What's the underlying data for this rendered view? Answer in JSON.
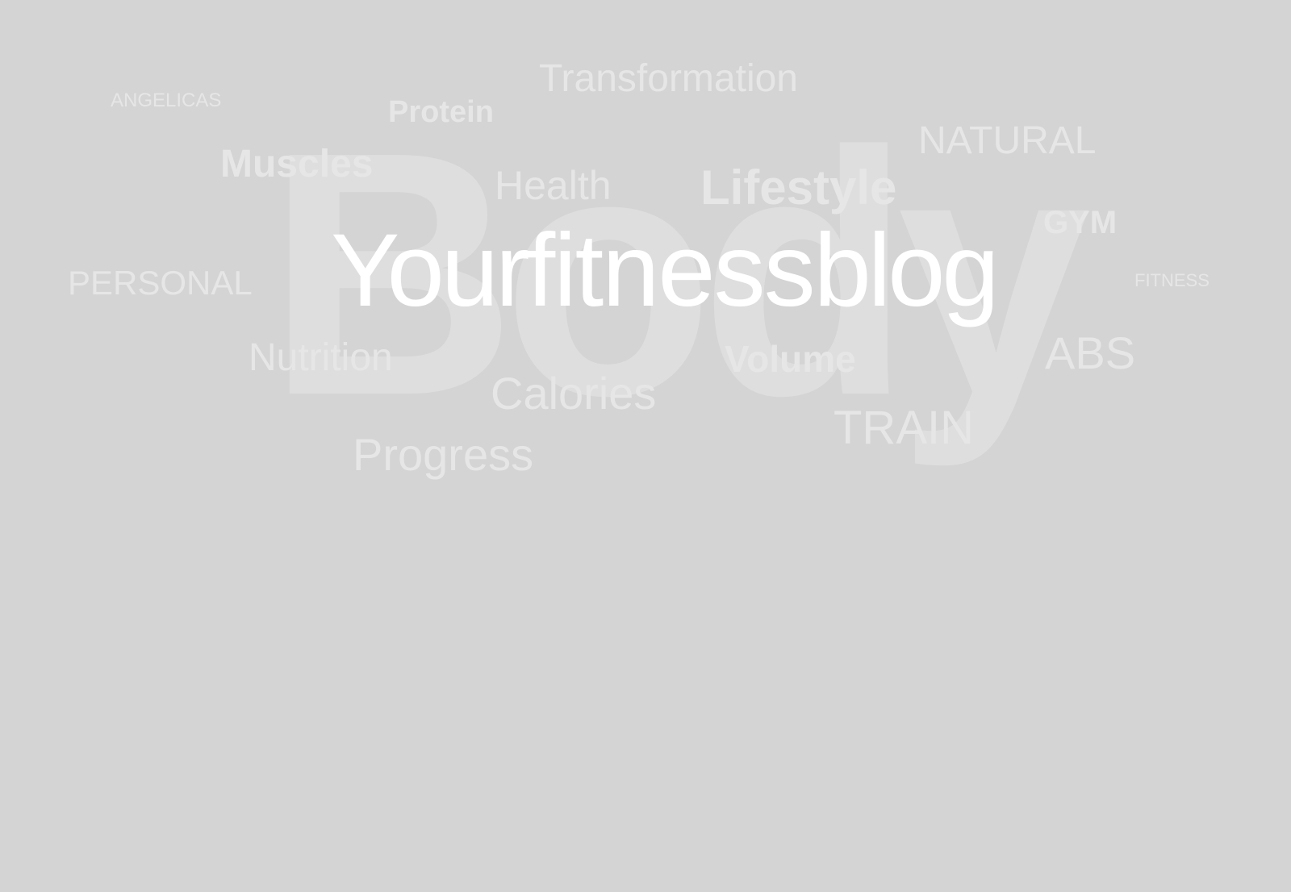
{
  "background_word": "Body",
  "brand": {
    "part1": "Your",
    "part2": "fitness",
    "part3": "blog"
  },
  "words": {
    "transformation": "Transformation",
    "angelicas": "ANGELICAS",
    "protein": "Protein",
    "natural": "NATURAL",
    "muscles": "Muscles",
    "health": "Health",
    "lifestyle": "Lifestyle",
    "gym": "GYM",
    "personal": "PERSONAL",
    "fitness": "FITNESS",
    "nutrition": "Nutrition",
    "volume": "Volume",
    "abs": "ABS",
    "calories": "Calories",
    "train": "TRAIN",
    "progress": "Progress"
  },
  "colors": {
    "background": "#d4d4d4",
    "word": "#e6e6e6",
    "background_word": "#dedede",
    "brand": "#ffffff"
  }
}
